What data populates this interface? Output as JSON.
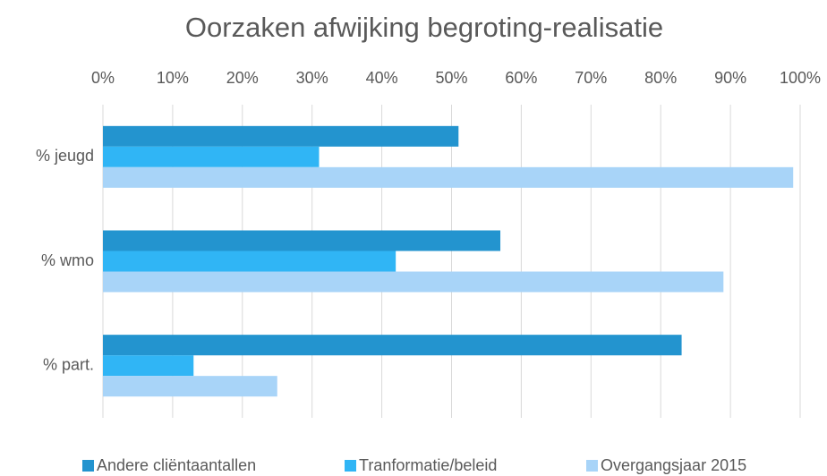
{
  "chart_data": {
    "type": "bar",
    "orientation": "horizontal",
    "title": "Oorzaken afwijking begroting-realisatie",
    "categories": [
      "% jeugd",
      "% wmo",
      "% part."
    ],
    "series": [
      {
        "name": "Andere cliëntaantallen",
        "color": "#2394cf",
        "values": [
          51,
          57,
          83
        ]
      },
      {
        "name": "Tranformatie/beleid",
        "color": "#30b5f5",
        "values": [
          31,
          42,
          13
        ]
      },
      {
        "name": "Overgangsjaar 2015",
        "color": "#a8d4f8",
        "values": [
          99,
          89,
          25
        ]
      }
    ],
    "xlim": [
      0,
      100
    ],
    "xticks": [
      {
        "value": 0,
        "label": "0%"
      },
      {
        "value": 10,
        "label": "10%"
      },
      {
        "value": 20,
        "label": "20%"
      },
      {
        "value": 30,
        "label": "30%"
      },
      {
        "value": 40,
        "label": "40%"
      },
      {
        "value": 50,
        "label": "50%"
      },
      {
        "value": 60,
        "label": "60%"
      },
      {
        "value": 70,
        "label": "70%"
      },
      {
        "value": 80,
        "label": "80%"
      },
      {
        "value": 90,
        "label": "90%"
      },
      {
        "value": 100,
        "label": "100%"
      }
    ],
    "grid": true,
    "legend": "bottom"
  }
}
